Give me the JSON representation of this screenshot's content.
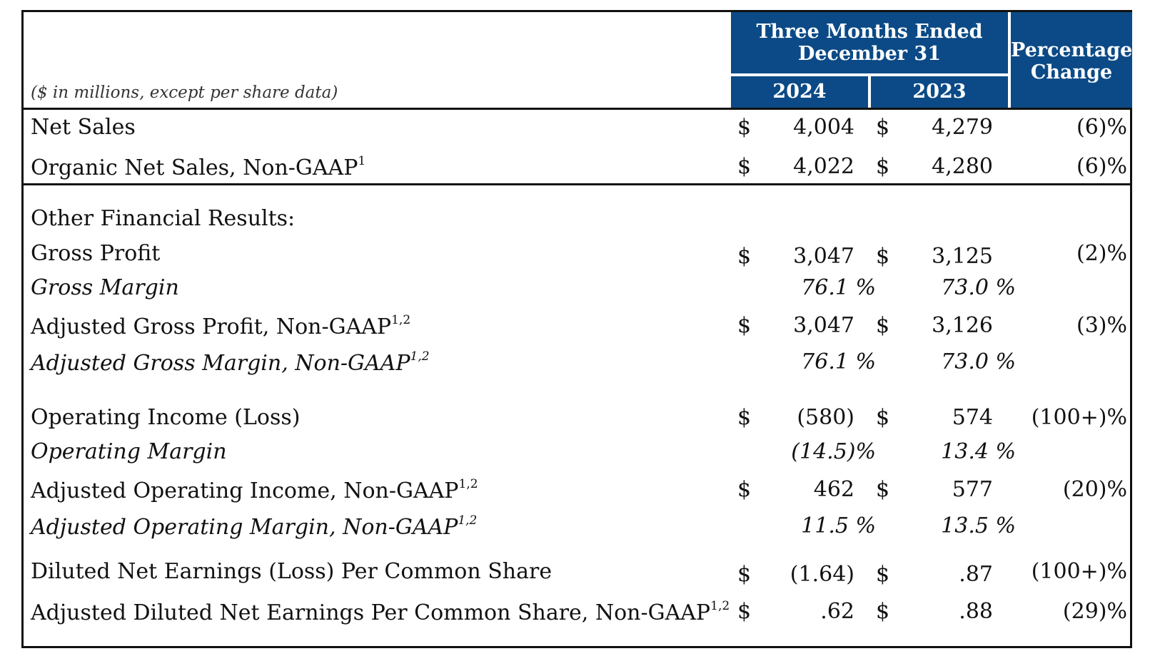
{
  "header": {
    "period_line1": "Three Months Ended",
    "period_line2": "December 31",
    "year1": "2024",
    "year2": "2023",
    "pct_line1": "Percentage",
    "pct_line2": "Change",
    "units": "($ in millions, except per share data)"
  },
  "rows": {
    "net_sales": {
      "label": "Net Sales",
      "sup": "",
      "c1": "$",
      "v1": "4,004",
      "c2": "$",
      "v2": "4,279",
      "chg": "(6)%"
    },
    "organic_net_sales": {
      "label": "Organic Net Sales, Non-GAAP",
      "sup": "1",
      "c1": "$",
      "v1": "4,022",
      "c2": "$",
      "v2": "4,280",
      "chg": "(6)%"
    },
    "other_heading": {
      "label": "Other Financial Results:"
    },
    "gross_profit": {
      "label": "Gross Profit",
      "sup": "",
      "c1": "$",
      "v1": "3,047",
      "c2": "$",
      "v2": "3,125",
      "chg": "(2)%"
    },
    "gross_margin": {
      "label": "Gross Margin",
      "sup": "",
      "v1": "76.1 %",
      "v2": "73.0 %"
    },
    "adj_gross_profit": {
      "label": "Adjusted Gross Profit, Non-GAAP",
      "sup": "1,2",
      "c1": "$",
      "v1": "3,047",
      "c2": "$",
      "v2": "3,126",
      "chg": "(3)%"
    },
    "adj_gross_margin": {
      "label": "Adjusted Gross Margin, Non-GAAP",
      "sup": "1,2",
      "v1": "76.1 %",
      "v2": "73.0 %"
    },
    "operating_income": {
      "label": "Operating Income (Loss)",
      "sup": "",
      "c1": "$",
      "v1": "(580)",
      "c2": "$",
      "v2": "574",
      "chg": "(100+)%"
    },
    "operating_margin": {
      "label": "Operating Margin",
      "sup": "",
      "v1": "(14.5)%",
      "v2": "13.4 %"
    },
    "adj_operating_income": {
      "label": "Adjusted Operating Income, Non-GAAP",
      "sup": "1,2",
      "c1": "$",
      "v1": "462",
      "c2": "$",
      "v2": "577",
      "chg": "(20)%"
    },
    "adj_operating_margin": {
      "label": "Adjusted Operating Margin, Non-GAAP",
      "sup": "1,2",
      "v1": "11.5 %",
      "v2": "13.5 %"
    },
    "diluted_eps": {
      "label": "Diluted Net Earnings (Loss) Per Common Share",
      "sup": "",
      "c1": "$",
      "v1": "(1.64)",
      "c2": "$",
      "v2": ".87",
      "chg": "(100+)%"
    },
    "adj_diluted_eps": {
      "label": "Adjusted Diluted Net Earnings Per Common Share, Non-GAAP",
      "sup": "1,2",
      "c1": "$",
      "v1": ".62",
      "c2": "$",
      "v2": ".88",
      "chg": "(29)%"
    }
  }
}
